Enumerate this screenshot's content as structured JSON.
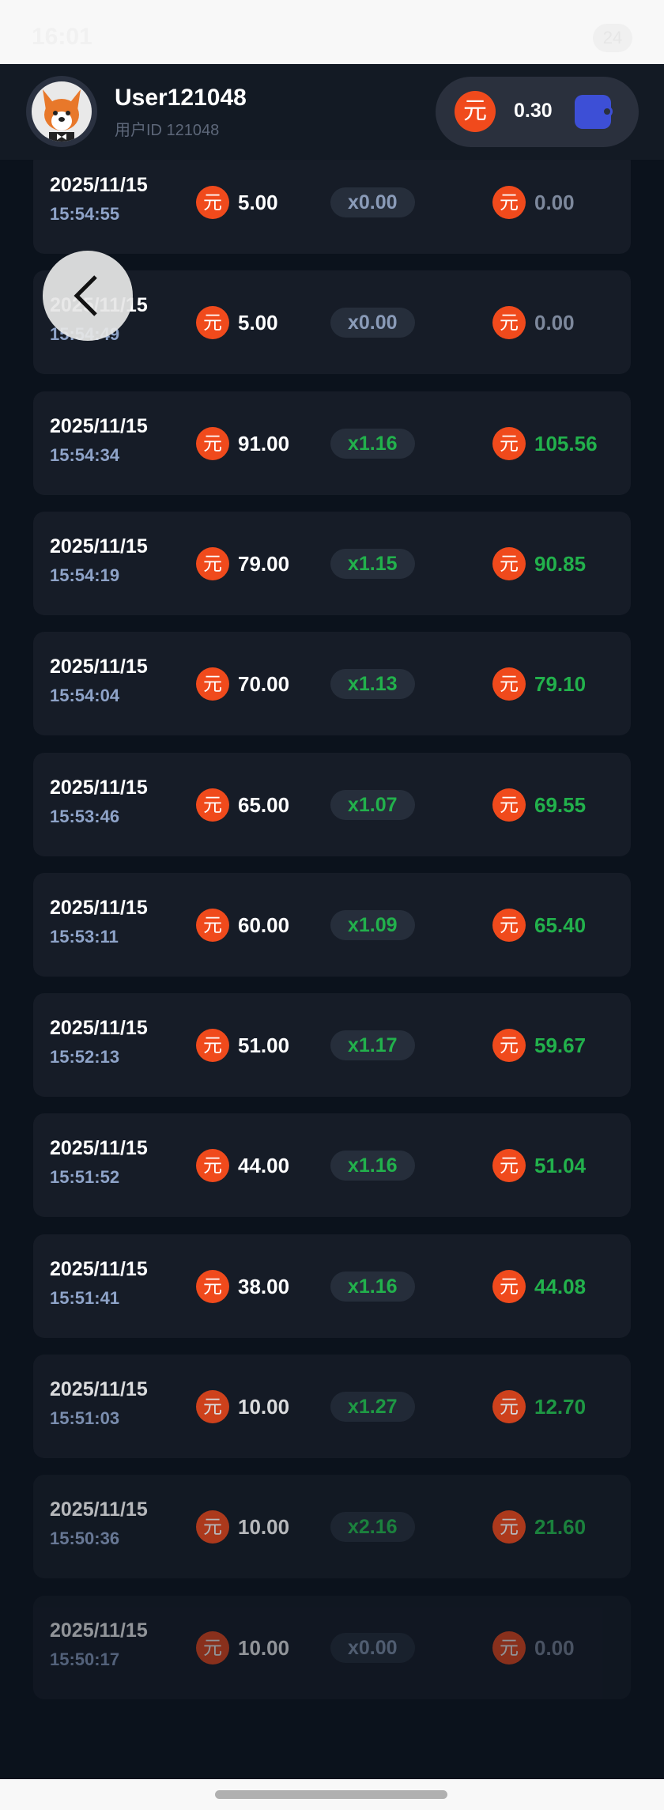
{
  "status_bar": {
    "time": "16:01",
    "battery": "24"
  },
  "header": {
    "username": "User121048",
    "user_id": "用户ID 121048",
    "balance": "0.30",
    "currency_symbol": "元"
  },
  "colors": {
    "accent": "#f04a1c",
    "win": "#22b14c",
    "wallet": "#3d4fd6"
  },
  "history": [
    {
      "date": "2025/11/15",
      "time": "15:54:55",
      "amount": "5.00",
      "multiplier": "x0.00",
      "payout": "0.00",
      "win": false
    },
    {
      "date": "2025/11/15",
      "time": "15:54:49",
      "amount": "5.00",
      "multiplier": "x0.00",
      "payout": "0.00",
      "win": false
    },
    {
      "date": "2025/11/15",
      "time": "15:54:34",
      "amount": "91.00",
      "multiplier": "x1.16",
      "payout": "105.56",
      "win": true
    },
    {
      "date": "2025/11/15",
      "time": "15:54:19",
      "amount": "79.00",
      "multiplier": "x1.15",
      "payout": "90.85",
      "win": true
    },
    {
      "date": "2025/11/15",
      "time": "15:54:04",
      "amount": "70.00",
      "multiplier": "x1.13",
      "payout": "79.10",
      "win": true
    },
    {
      "date": "2025/11/15",
      "time": "15:53:46",
      "amount": "65.00",
      "multiplier": "x1.07",
      "payout": "69.55",
      "win": true
    },
    {
      "date": "2025/11/15",
      "time": "15:53:11",
      "amount": "60.00",
      "multiplier": "x1.09",
      "payout": "65.40",
      "win": true
    },
    {
      "date": "2025/11/15",
      "time": "15:52:13",
      "amount": "51.00",
      "multiplier": "x1.17",
      "payout": "59.67",
      "win": true
    },
    {
      "date": "2025/11/15",
      "time": "15:51:52",
      "amount": "44.00",
      "multiplier": "x1.16",
      "payout": "51.04",
      "win": true
    },
    {
      "date": "2025/11/15",
      "time": "15:51:41",
      "amount": "38.00",
      "multiplier": "x1.16",
      "payout": "44.08",
      "win": true
    },
    {
      "date": "2025/11/15",
      "time": "15:51:03",
      "amount": "10.00",
      "multiplier": "x1.27",
      "payout": "12.70",
      "win": true
    },
    {
      "date": "2025/11/15",
      "time": "15:50:36",
      "amount": "10.00",
      "multiplier": "x2.16",
      "payout": "21.60",
      "win": true
    },
    {
      "date": "2025/11/15",
      "time": "15:50:17",
      "amount": "10.00",
      "multiplier": "x0.00",
      "payout": "0.00",
      "win": false
    }
  ]
}
